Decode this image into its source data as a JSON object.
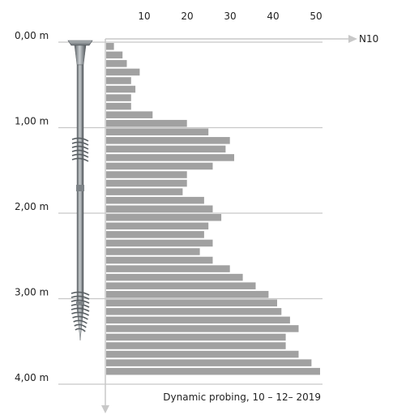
{
  "chart_data": {
    "type": "bar",
    "orientation": "horizontal",
    "caption": "Dynamic probing, 10 – 12– 2019",
    "xlabel": "N10",
    "xlim": [
      0,
      50
    ],
    "x_tick_labels": [
      "10",
      "20",
      "30",
      "40",
      "50"
    ],
    "x_tick_values": [
      10,
      20,
      30,
      40,
      50
    ],
    "ylim": [
      0,
      4.0
    ],
    "y_tick_labels": [
      "0,00 m",
      "1,00 m",
      "2,00 m",
      "3,00 m",
      "4,00 m"
    ],
    "y_tick_values": [
      0,
      1,
      2,
      3,
      4
    ],
    "depth_step": 0.1,
    "values": [
      2,
      4,
      5,
      8,
      6,
      7,
      6,
      6,
      11,
      19,
      24,
      29,
      28,
      30,
      25,
      19,
      19,
      18,
      23,
      25,
      27,
      24,
      23,
      25,
      22,
      25,
      29,
      32,
      35,
      38,
      40,
      41,
      43,
      45,
      42,
      42,
      45,
      48,
      50
    ],
    "grid": true,
    "colors": {
      "bar": "#a1a1a1",
      "axis": "#c8c8c8",
      "text": "#222222"
    }
  },
  "illustration": {
    "icon": "ground-screw-icon"
  }
}
